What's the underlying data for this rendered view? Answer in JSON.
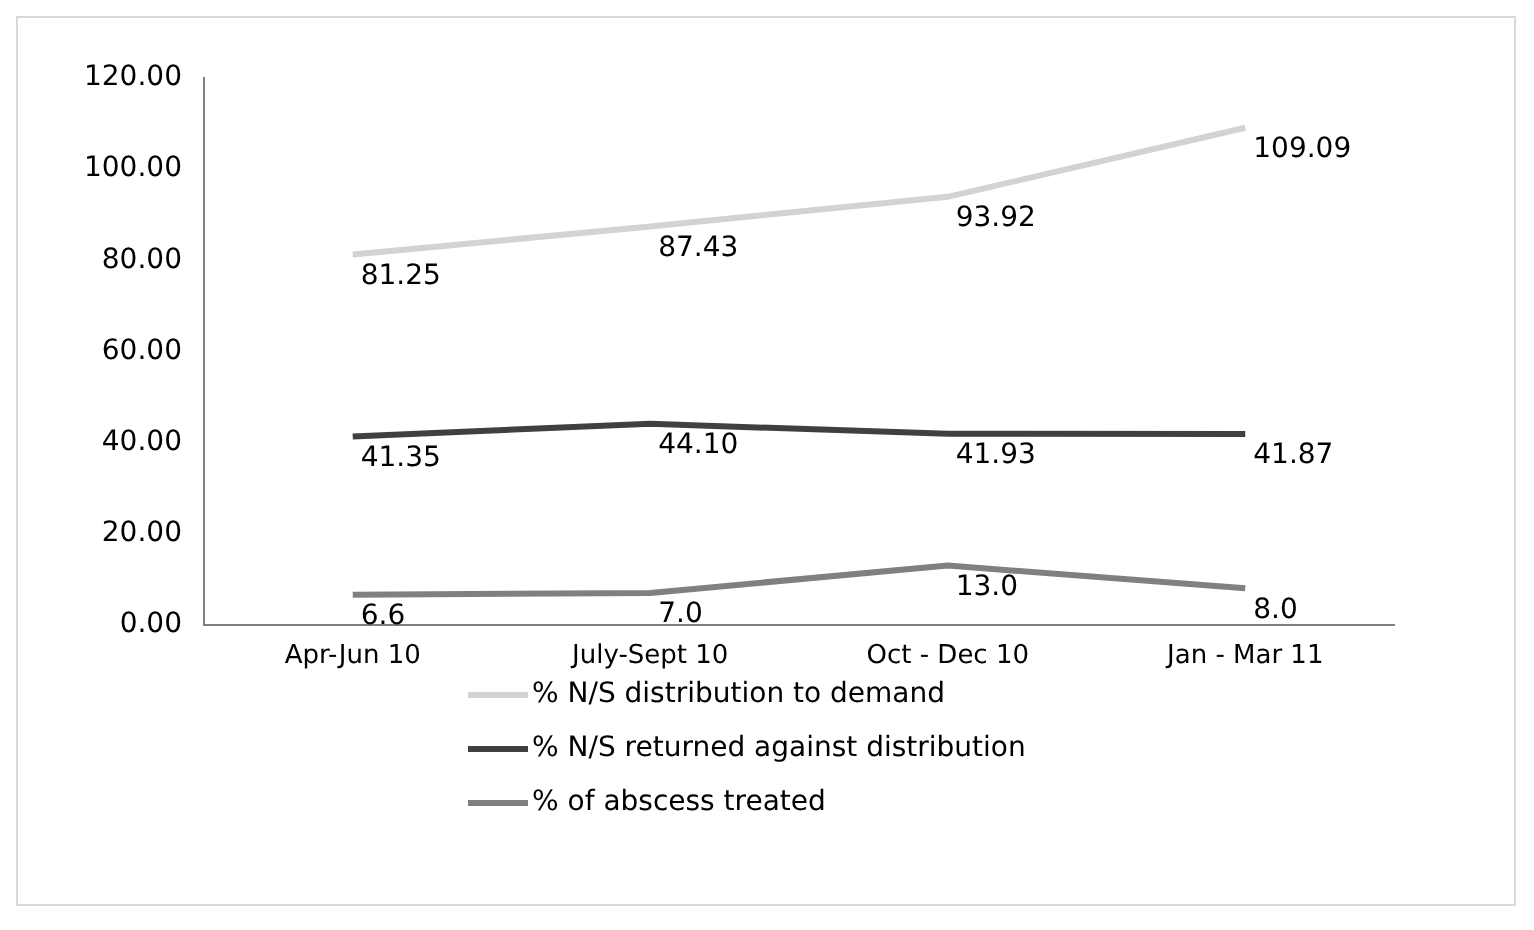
{
  "chart_data": {
    "type": "line",
    "categories": [
      "Apr-Jun 10",
      "July-Sept 10",
      "Oct - Dec 10",
      "Jan - Mar 11"
    ],
    "series": [
      {
        "name": "% N/S distribution to demand",
        "color": "#d3d3d3",
        "values": [
          81.25,
          87.43,
          93.92,
          109.09
        ],
        "value_labels": [
          "81.25",
          "87.43",
          "93.92",
          "109.09"
        ]
      },
      {
        "name": "% N/S returned against distribution",
        "color": "#404040",
        "values": [
          41.35,
          44.1,
          41.93,
          41.87
        ],
        "value_labels": [
          "41.35",
          "44.10",
          "41.93",
          "41.87"
        ]
      },
      {
        "name": "% of abscess treated",
        "color": "#808080",
        "values": [
          6.6,
          7.0,
          13.0,
          8.0
        ],
        "value_labels": [
          "6.6",
          "7.0",
          "13.0",
          "8.0"
        ]
      }
    ],
    "ylim": [
      0,
      120
    ],
    "yticks": [
      {
        "value": 0,
        "label": "0.00"
      },
      {
        "value": 20,
        "label": "20.00"
      },
      {
        "value": 40,
        "label": "40.00"
      },
      {
        "value": 60,
        "label": "60.00"
      },
      {
        "value": 80,
        "label": "80.00"
      },
      {
        "value": 100,
        "label": "100.00"
      },
      {
        "value": 120,
        "label": "120.00"
      }
    ],
    "grid": false,
    "legend": "bottom",
    "marker": "none",
    "line_style": "solid"
  }
}
